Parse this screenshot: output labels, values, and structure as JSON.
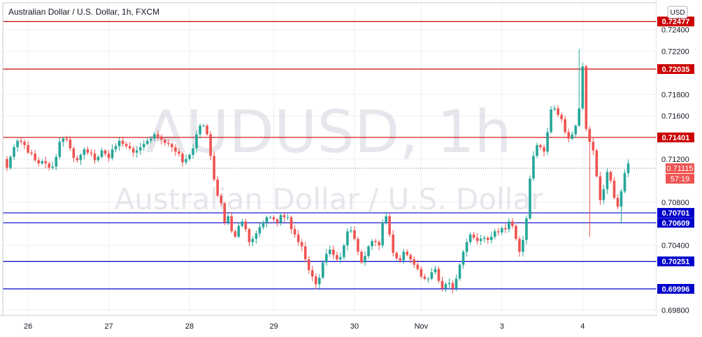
{
  "chart_data": {
    "type": "candlestick",
    "title": "Australian Dollar / U.S. Dollar, 1h, FXCM",
    "currency_badge": "USD",
    "watermark": {
      "symbol": "AUDUSD, 1h",
      "description": "Australian Dollar / U.S. Dollar"
    },
    "ylim": [
      0.6975,
      0.7265
    ],
    "y_ticks": [
      {
        "value": 0.724,
        "label": "0.72400"
      },
      {
        "value": 0.722,
        "label": "0.72200"
      },
      {
        "value": 0.718,
        "label": "0.71800"
      },
      {
        "value": 0.716,
        "label": "0.71600"
      },
      {
        "value": 0.712,
        "label": "0.71200"
      },
      {
        "value": 0.708,
        "label": "0.70800"
      },
      {
        "value": 0.704,
        "label": "0.70400"
      },
      {
        "value": 0.698,
        "label": "0.69800"
      }
    ],
    "x_ticks": [
      {
        "bar": 6,
        "label": "26"
      },
      {
        "bar": 29,
        "label": "27"
      },
      {
        "bar": 52,
        "label": "28"
      },
      {
        "bar": 76,
        "label": "29"
      },
      {
        "bar": 99,
        "label": "30"
      },
      {
        "bar": 118,
        "label": "Nov"
      },
      {
        "bar": 141,
        "label": "3"
      },
      {
        "bar": 164,
        "label": "4"
      }
    ],
    "resistance_levels": [
      {
        "value": 0.72477,
        "label": "0.72477"
      },
      {
        "value": 0.72035,
        "label": "0.72035"
      },
      {
        "value": 0.71401,
        "label": "0.71401"
      }
    ],
    "support_levels": [
      {
        "value": 0.70701,
        "label": "0.70701"
      },
      {
        "value": 0.70609,
        "label": "0.70609"
      },
      {
        "value": 0.70251,
        "label": "0.70251"
      },
      {
        "value": 0.69996,
        "label": "0.69996"
      }
    ],
    "current_price": {
      "value": 0.71115,
      "label": "0.71115",
      "countdown": "57:19"
    },
    "up_color": "#26a69a",
    "down_color": "#ef5350",
    "resistance_color": "#cc0000",
    "support_color": "#0000cc",
    "close": [
      0.7112,
      0.7122,
      0.7131,
      0.7137,
      0.7136,
      0.7133,
      0.7126,
      0.7125,
      0.7119,
      0.7116,
      0.7118,
      0.7116,
      0.7112,
      0.7113,
      0.7122,
      0.7136,
      0.7139,
      0.7138,
      0.713,
      0.7121,
      0.7119,
      0.7124,
      0.7129,
      0.7126,
      0.7125,
      0.7119,
      0.7122,
      0.7128,
      0.7125,
      0.7121,
      0.7129,
      0.7132,
      0.7137,
      0.7134,
      0.7132,
      0.713,
      0.7126,
      0.7128,
      0.7131,
      0.7134,
      0.7137,
      0.7139,
      0.7143,
      0.7141,
      0.7138,
      0.7135,
      0.7134,
      0.7131,
      0.7127,
      0.7125,
      0.7117,
      0.712,
      0.7124,
      0.713,
      0.7143,
      0.7151,
      0.7151,
      0.7143,
      0.7123,
      0.7101,
      0.7086,
      0.7079,
      0.7061,
      0.7067,
      0.7053,
      0.7048,
      0.7058,
      0.7062,
      0.7055,
      0.7043,
      0.7046,
      0.7051,
      0.7057,
      0.7061,
      0.7066,
      0.7066,
      0.7064,
      0.7061,
      0.7068,
      0.7066,
      0.7066,
      0.7055,
      0.705,
      0.7043,
      0.7039,
      0.7027,
      0.7017,
      0.7011,
      0.7004,
      0.701,
      0.7024,
      0.7032,
      0.7036,
      0.7031,
      0.7027,
      0.7029,
      0.704,
      0.7053,
      0.7054,
      0.7046,
      0.7034,
      0.7024,
      0.703,
      0.7039,
      0.7044,
      0.7043,
      0.704,
      0.7061,
      0.7067,
      0.705,
      0.7033,
      0.7028,
      0.7026,
      0.7034,
      0.7031,
      0.7027,
      0.7022,
      0.7018,
      0.7011,
      0.7009,
      0.7009,
      0.7015,
      0.7018,
      0.7007,
      0.7,
      0.7004,
      0.7005,
      0.7,
      0.7009,
      0.7022,
      0.7034,
      0.7043,
      0.705,
      0.7047,
      0.7044,
      0.7046,
      0.7047,
      0.7045,
      0.7048,
      0.7053,
      0.7052,
      0.7056,
      0.7055,
      0.7062,
      0.7058,
      0.7046,
      0.7034,
      0.7045,
      0.7065,
      0.7102,
      0.7123,
      0.7133,
      0.7131,
      0.7127,
      0.7145,
      0.7166,
      0.7167,
      0.7161,
      0.7157,
      0.7145,
      0.7139,
      0.7143,
      0.7151,
      0.7167,
      0.7206,
      0.7148,
      0.7136,
      0.7128,
      0.7104,
      0.7082,
      0.7092,
      0.7108,
      0.71,
      0.7084,
      0.7076,
      0.709,
      0.7107,
      0.7116
    ]
  }
}
